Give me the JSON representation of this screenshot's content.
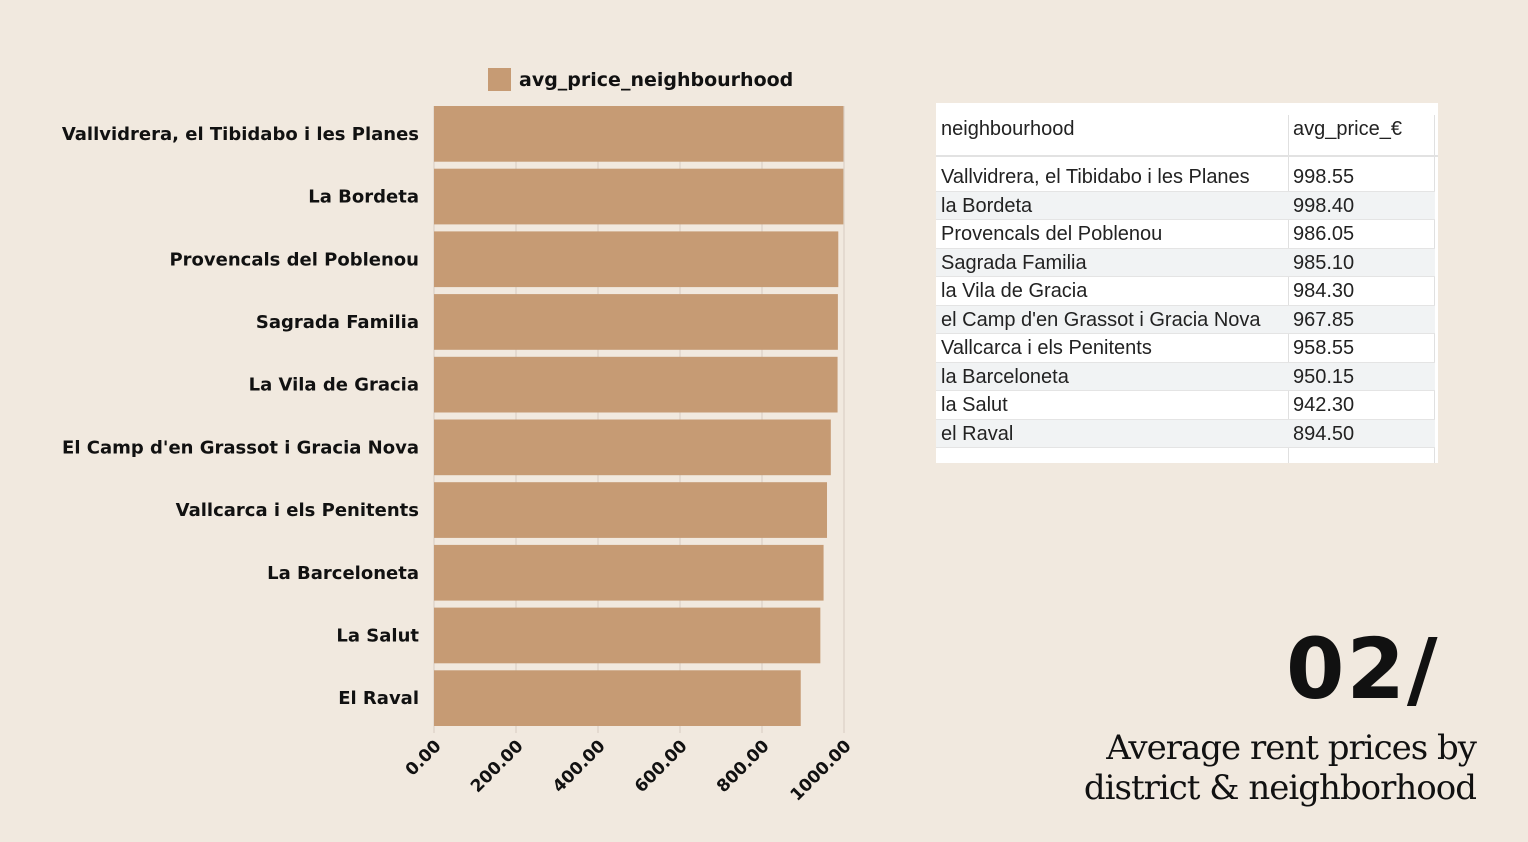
{
  "colors": {
    "background": "#f1e9df",
    "bar": "#c69b74",
    "grid": "#d6ccc0"
  },
  "chart_data": {
    "type": "bar",
    "orientation": "horizontal",
    "legend": [
      "avg_price_neighbourhood"
    ],
    "legend_position": "top",
    "categories": [
      "Vallvidrera, el Tibidabo i les Planes",
      "La Bordeta",
      "Provencals del Poblenou",
      "Sagrada Familia",
      "La Vila de Gracia",
      "El Camp d'en Grassot i Gracia Nova",
      "Vallcarca i els Penitents",
      "La Barceloneta",
      "La Salut",
      "El Raval"
    ],
    "series": [
      {
        "name": "avg_price_neighbourhood",
        "values": [
          998.55,
          998.4,
          986.05,
          985.1,
          984.3,
          967.85,
          958.55,
          950.15,
          942.3,
          894.5
        ]
      }
    ],
    "xlim": [
      0,
      1000
    ],
    "xticks": [
      "0.00",
      "200.00",
      "400.00",
      "600.00",
      "800.00",
      "1000.00"
    ],
    "grid": true
  },
  "table": {
    "headers": [
      "neighbourhood",
      "avg_price_€"
    ],
    "rows": [
      [
        "Vallvidrera, el Tibidabo i les Planes",
        "998.55"
      ],
      [
        "la Bordeta",
        "998.40"
      ],
      [
        "Provencals del Poblenou",
        "986.05"
      ],
      [
        "Sagrada Familia",
        "985.10"
      ],
      [
        "la Vila de Gracia",
        "984.30"
      ],
      [
        "el Camp d'en Grassot i Gracia Nova",
        "967.85"
      ],
      [
        "Vallcarca i els Penitents",
        "958.55"
      ],
      [
        "la Barceloneta",
        "950.15"
      ],
      [
        "la Salut",
        "942.30"
      ],
      [
        "el Raval",
        "894.50"
      ]
    ]
  },
  "slide": {
    "number": "02/",
    "title_line1": "Average rent prices by",
    "title_line2": "district & neighborhood"
  }
}
